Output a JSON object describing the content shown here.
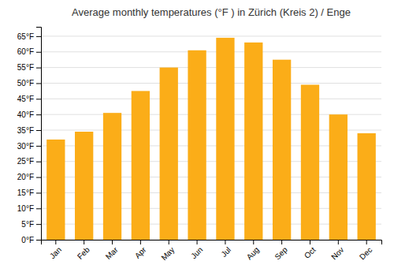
{
  "chart_data": {
    "type": "bar",
    "title": "Average monthly temperatures (°F ) in Zürich (Kreis 2) / Enge",
    "categories": [
      "Jan",
      "Feb",
      "Mar",
      "Apr",
      "May",
      "Jun",
      "Jul",
      "Aug",
      "Sep",
      "Oct",
      "Nov",
      "Dec"
    ],
    "values": [
      32,
      34.5,
      40.5,
      47.5,
      55,
      60.5,
      64.5,
      63,
      57.5,
      49.5,
      40,
      34
    ],
    "color": "#FBAD18",
    "ylim": [
      0,
      68
    ],
    "yticks": [
      {
        "value": 0,
        "label": "0°F"
      },
      {
        "value": 5,
        "label": "5°F"
      },
      {
        "value": 10,
        "label": "10°F"
      },
      {
        "value": 15,
        "label": "15°F"
      },
      {
        "value": 20,
        "label": "20°F"
      },
      {
        "value": 25,
        "label": "25°F"
      },
      {
        "value": 30,
        "label": "30°F"
      },
      {
        "value": 35,
        "label": "35°F"
      },
      {
        "value": 40,
        "label": "40°F"
      },
      {
        "value": 45,
        "label": "45°F"
      },
      {
        "value": 50,
        "label": "50°F"
      },
      {
        "value": 55,
        "label": "55°F"
      },
      {
        "value": 60,
        "label": "60°F"
      },
      {
        "value": 65,
        "label": "65°F"
      }
    ],
    "grid": true
  }
}
